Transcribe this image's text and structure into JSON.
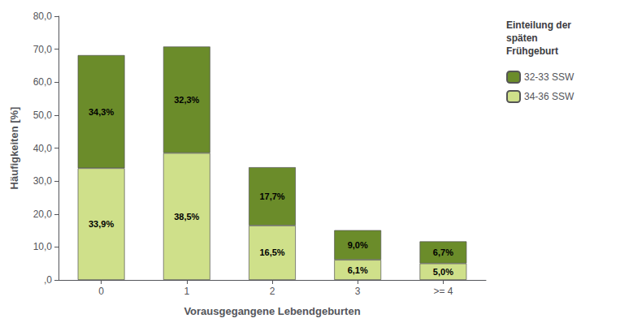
{
  "chart_data": {
    "type": "bar",
    "stacked": true,
    "categories": [
      "0",
      "1",
      "2",
      "3",
      ">= 4"
    ],
    "series": [
      {
        "name": "34-36 SSW",
        "color": "#cfe08a",
        "values": [
          33.9,
          38.5,
          16.5,
          6.1,
          5.0
        ],
        "value_labels": [
          "33,9%",
          "38,5%",
          "16,5%",
          "6,1%",
          "5,0%"
        ]
      },
      {
        "name": "32-33 SSW",
        "color": "#6b8c2a",
        "values": [
          34.3,
          32.3,
          17.7,
          9.0,
          6.7
        ],
        "value_labels": [
          "34,3%",
          "32,3%",
          "17,7%",
          "9,0%",
          "6,7%"
        ]
      }
    ],
    "xlabel": "Vorausgegangene Lebendgeburten",
    "ylabel": "Häufigkeiten [%]",
    "ylim": [
      0,
      80
    ],
    "yticks": [
      {
        "value": 0,
        "label": ",0"
      },
      {
        "value": 10,
        "label": "10,0"
      },
      {
        "value": 20,
        "label": "20,0"
      },
      {
        "value": 30,
        "label": "30,0"
      },
      {
        "value": 40,
        "label": "40,0"
      },
      {
        "value": 50,
        "label": "50,0"
      },
      {
        "value": 60,
        "label": "60,0"
      },
      {
        "value": 70,
        "label": "70,0"
      },
      {
        "value": 80,
        "label": "80,0"
      }
    ],
    "grid": false,
    "legend": "right",
    "legend_title": "Einteilung der\nspäten\nFrühgeburt",
    "data_labels": true
  }
}
